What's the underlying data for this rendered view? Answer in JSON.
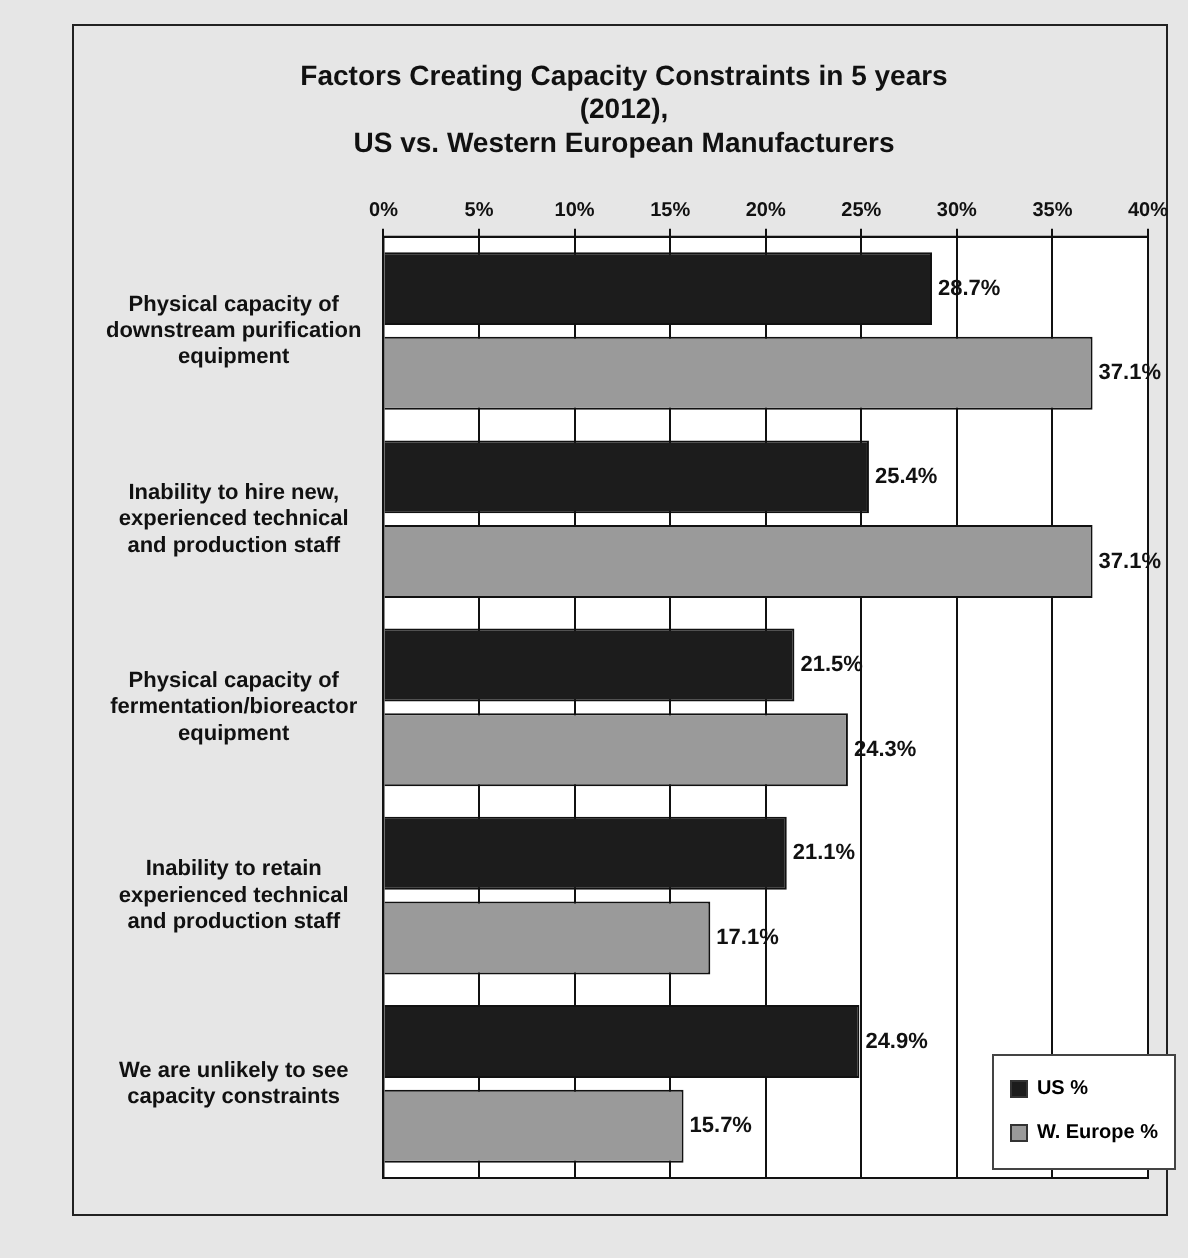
{
  "chart_data": {
    "type": "bar",
    "orientation": "horizontal",
    "title": "Factors Creating Capacity Constraints in 5 years\n(2012),\nUS vs. Western European Manufacturers",
    "categories": [
      "Physical capacity of\ndownstream purification\nequipment",
      "Inability to hire new,\nexperienced technical\nand production staff",
      "Physical capacity of\nfermentation/bioreactor\nequipment",
      "Inability to retain\nexperienced technical\nand production staff",
      "We are unlikely to see\ncapacity constraints"
    ],
    "series": [
      {
        "name": "US %",
        "color": "#1c1c1c",
        "values": [
          28.7,
          25.4,
          21.5,
          21.1,
          24.9
        ],
        "value_labels": [
          "28.7%",
          "25.4%",
          "21.5%",
          "21.1%",
          "24.9%"
        ]
      },
      {
        "name": "W. Europe %",
        "color": "#9a9a9a",
        "values": [
          37.1,
          37.1,
          24.3,
          17.1,
          15.7
        ],
        "value_labels": [
          "37.1%",
          "37.1%",
          "24.3%",
          "17.1%",
          "15.7%"
        ]
      }
    ],
    "xlim": [
      0,
      40
    ],
    "xticks": [
      {
        "value": 0,
        "label": "0%"
      },
      {
        "value": 5,
        "label": "5%"
      },
      {
        "value": 10,
        "label": "10%"
      },
      {
        "value": 15,
        "label": "15%"
      },
      {
        "value": 20,
        "label": "20%"
      },
      {
        "value": 25,
        "label": "25%"
      },
      {
        "value": 30,
        "label": "30%"
      },
      {
        "value": 35,
        "label": "35%"
      },
      {
        "value": 40,
        "label": "40%"
      }
    ],
    "grid": "x",
    "legend": "bottom right"
  }
}
